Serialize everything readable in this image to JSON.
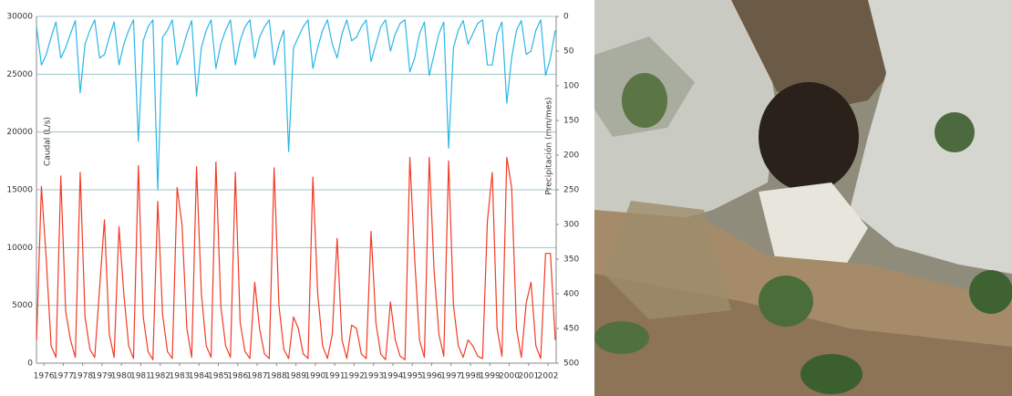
{
  "chart_data": {
    "type": "line",
    "y_label": "Caudal (L/s)",
    "y2_label": "Precipitación (mm/mes)",
    "x": [
      1975.625,
      1975.875,
      1976.125,
      1976.375,
      1976.625,
      1976.875,
      1977.125,
      1977.375,
      1977.625,
      1977.875,
      1978.125,
      1978.375,
      1978.625,
      1978.875,
      1979.125,
      1979.375,
      1979.625,
      1979.875,
      1980.125,
      1980.375,
      1980.625,
      1980.875,
      1981.125,
      1981.375,
      1981.625,
      1981.875,
      1982.125,
      1982.375,
      1982.625,
      1982.875,
      1983.125,
      1983.375,
      1983.625,
      1983.875,
      1984.125,
      1984.375,
      1984.625,
      1984.875,
      1985.125,
      1985.375,
      1985.625,
      1985.875,
      1986.125,
      1986.375,
      1986.625,
      1986.875,
      1987.125,
      1987.375,
      1987.625,
      1987.875,
      1988.125,
      1988.375,
      1988.625,
      1988.875,
      1989.125,
      1989.375,
      1989.625,
      1989.875,
      1990.125,
      1990.375,
      1990.625,
      1990.875,
      1991.125,
      1991.375,
      1991.625,
      1991.875,
      1992.125,
      1992.375,
      1992.625,
      1992.875,
      1993.125,
      1993.375,
      1993.625,
      1993.875,
      1994.125,
      1994.375,
      1994.625,
      1994.875,
      1995.125,
      1995.375,
      1995.625,
      1995.875,
      1996.125,
      1996.375,
      1996.625,
      1996.875,
      1997.125,
      1997.375,
      1997.625,
      1997.875,
      1998.125,
      1998.375,
      1998.625,
      1998.875,
      1999.125,
      1999.375,
      1999.625,
      1999.875,
      2000.125,
      2000.375,
      2000.625,
      2000.875,
      2001.125,
      2001.375,
      2001.625,
      2001.875,
      2002.125,
      2002.375
    ],
    "series": [
      {
        "color": "#f23b26",
        "values": [
          2000,
          15300,
          9000,
          1500,
          500,
          16200,
          4500,
          2000,
          500,
          16500,
          4000,
          1200,
          500,
          6500,
          12400,
          2500,
          500,
          11800,
          6000,
          1500,
          400,
          17100,
          4000,
          1000,
          300,
          14000,
          4200,
          1000,
          400,
          15200,
          12000,
          3000,
          500,
          17000,
          6000,
          1500,
          500,
          17400,
          5000,
          1500,
          500,
          16500,
          3500,
          1000,
          400,
          7000,
          3000,
          800,
          400,
          16900,
          5000,
          1200,
          400,
          4000,
          3000,
          800,
          400,
          16100,
          6000,
          1500,
          400,
          2500,
          10800,
          2000,
          400,
          3300,
          3000,
          800,
          400,
          11400,
          3500,
          800,
          300,
          5300,
          2000,
          600,
          300,
          17800,
          9000,
          2000,
          500,
          17800,
          8000,
          2500,
          600,
          17500,
          5000,
          1500,
          500,
          2000,
          1500,
          600,
          400,
          12300,
          16500,
          3000,
          600,
          17800,
          15200,
          3000,
          500,
          5200,
          7000,
          1500,
          400,
          9500,
          9500,
          2000
        ]
      },
      {
        "color": "#2bb6e6",
        "axis": "y2",
        "values": [
          15,
          70,
          55,
          30,
          8,
          60,
          45,
          25,
          6,
          110,
          40,
          20,
          5,
          60,
          55,
          30,
          8,
          70,
          40,
          20,
          5,
          180,
          35,
          15,
          5,
          250,
          30,
          20,
          5,
          70,
          50,
          25,
          6,
          115,
          45,
          20,
          5,
          75,
          40,
          20,
          5,
          70,
          35,
          15,
          5,
          60,
          30,
          15,
          5,
          70,
          40,
          20,
          195,
          45,
          30,
          15,
          5,
          75,
          45,
          20,
          5,
          40,
          60,
          25,
          5,
          35,
          30,
          15,
          5,
          65,
          40,
          15,
          5,
          50,
          25,
          10,
          5,
          80,
          60,
          25,
          8,
          85,
          55,
          25,
          8,
          190,
          45,
          20,
          6,
          40,
          25,
          10,
          5,
          70,
          70,
          25,
          8,
          125,
          60,
          20,
          6,
          55,
          50,
          20,
          5,
          85,
          60,
          20
        ]
      }
    ],
    "xlim": [
      1975.62,
      2002.42
    ],
    "xticks": [
      1976,
      1977,
      1978,
      1979,
      1980,
      1981,
      1982,
      1983,
      1984,
      1985,
      1986,
      1987,
      1988,
      1989,
      1990,
      1991,
      1992,
      1993,
      1994,
      1995,
      1996,
      1997,
      1998,
      1999,
      2000,
      2001,
      2002
    ],
    "ylim": [
      0,
      30000
    ],
    "yticks": [
      0,
      5000,
      10000,
      15000,
      20000,
      25000,
      30000
    ],
    "y2lim": [
      0,
      500
    ],
    "y2_inverted": true,
    "y2ticks": [
      0,
      50,
      100,
      150,
      200,
      250,
      300,
      350,
      400,
      450,
      500
    ],
    "grid": true
  }
}
